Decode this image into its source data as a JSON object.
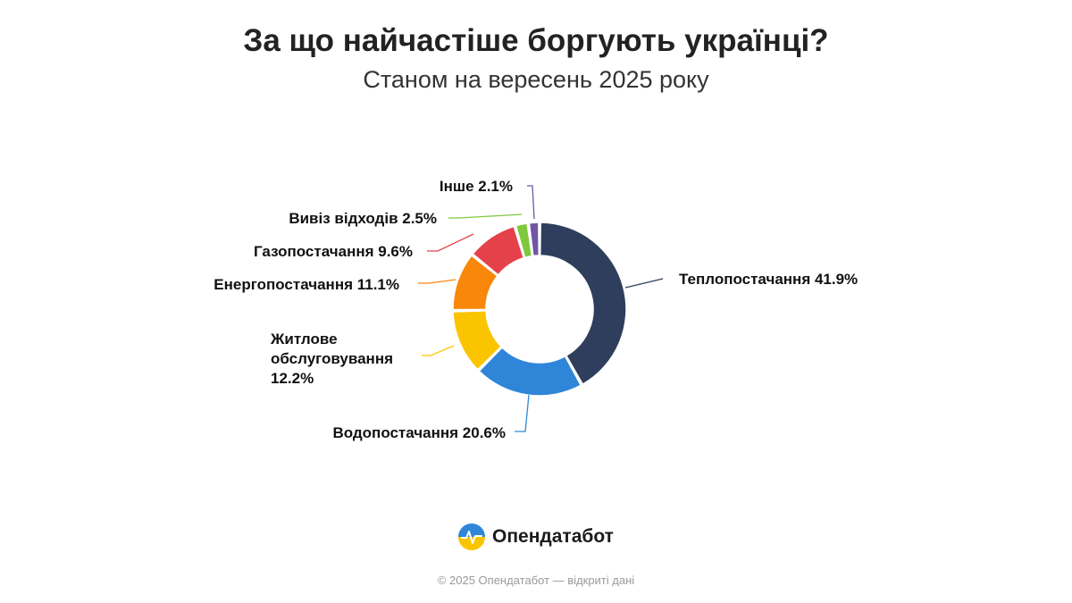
{
  "title": "За що найчастіше боргують українці?",
  "subtitle": "Станом на вересень 2025 року",
  "brand": {
    "name": "Опендатабот",
    "logo_icon": "opendatabot-logo-icon"
  },
  "footer": "© 2025 Опендатабот — відкриті дані",
  "chart_data": {
    "type": "pie",
    "donut": true,
    "slices": [
      {
        "label": "Теплопостачання",
        "value": 41.9,
        "value_text": "41.9%",
        "color": "#2e3e5c"
      },
      {
        "label": "Водопостачання",
        "value": 20.6,
        "value_text": "20.6%",
        "color": "#2f86d9"
      },
      {
        "label": "Житлове обслуговування",
        "value": 12.2,
        "value_text": "12.2%",
        "color": "#fbc400"
      },
      {
        "label": "Енергопостачання",
        "value": 11.1,
        "value_text": "11.1%",
        "color": "#f8870a"
      },
      {
        "label": "Газопостачання",
        "value": 9.6,
        "value_text": "9.6%",
        "color": "#e5414a"
      },
      {
        "label": "Вивіз відходів",
        "value": 2.5,
        "value_text": "2.5%",
        "color": "#7dc83c"
      },
      {
        "label": "Інше",
        "value": 2.1,
        "value_text": "2.1%",
        "color": "#6f56a6"
      }
    ]
  }
}
